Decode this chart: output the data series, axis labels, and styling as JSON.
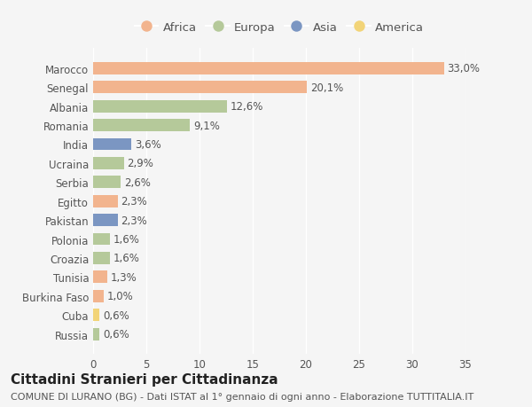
{
  "countries": [
    "Russia",
    "Cuba",
    "Burkina Faso",
    "Tunisia",
    "Croazia",
    "Polonia",
    "Pakistan",
    "Egitto",
    "Serbia",
    "Ucraina",
    "India",
    "Romania",
    "Albania",
    "Senegal",
    "Marocco"
  ],
  "values": [
    0.6,
    0.6,
    1.0,
    1.3,
    1.6,
    1.6,
    2.3,
    2.3,
    2.6,
    2.9,
    3.6,
    9.1,
    12.6,
    20.1,
    33.0
  ],
  "labels": [
    "0,6%",
    "0,6%",
    "1,0%",
    "1,3%",
    "1,6%",
    "1,6%",
    "2,3%",
    "2,3%",
    "2,6%",
    "2,9%",
    "3,6%",
    "9,1%",
    "12,6%",
    "20,1%",
    "33,0%"
  ],
  "continents": [
    "Europa",
    "America",
    "Africa",
    "Africa",
    "Europa",
    "Europa",
    "Asia",
    "Africa",
    "Europa",
    "Europa",
    "Asia",
    "Europa",
    "Europa",
    "Africa",
    "Africa"
  ],
  "continent_colors": {
    "Africa": "#F2B48E",
    "Europa": "#B5C99A",
    "Asia": "#7B96C2",
    "America": "#F2D478"
  },
  "legend_order": [
    "Africa",
    "Europa",
    "Asia",
    "America"
  ],
  "title": "Cittadini Stranieri per Cittadinanza",
  "subtitle": "COMUNE DI LURANO (BG) - Dati ISTAT al 1° gennaio di ogni anno - Elaborazione TUTTITALIA.IT",
  "xlim": [
    0,
    35
  ],
  "xticks": [
    0,
    5,
    10,
    15,
    20,
    25,
    30,
    35
  ],
  "background_color": "#F5F5F5",
  "bar_height": 0.65,
  "label_fontsize": 8.5,
  "tick_fontsize": 8.5,
  "title_fontsize": 11,
  "subtitle_fontsize": 8
}
